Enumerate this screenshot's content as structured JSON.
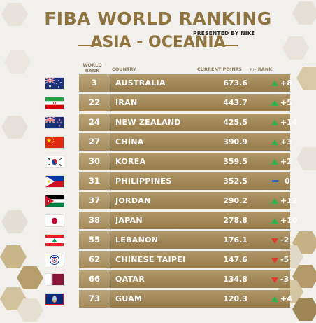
{
  "header": {
    "title": "FIBA WORLD RANKING",
    "presented_by": "PRESENTED BY NIKE",
    "region": "ASIA - OCEANIA"
  },
  "columns": {
    "world_rank": "WORLD RANK",
    "country": "COUNTRY",
    "current_points": "CURRENT POINTS",
    "change": "+/- RANK"
  },
  "colors": {
    "gold": "#8f7440",
    "up": "#2fb248",
    "down": "#e03a2c",
    "same": "#2a68c4"
  },
  "rows": [
    {
      "flag": "australia-flag",
      "rank": "3",
      "country": "AUSTRALIA",
      "points": "673.6",
      "trend": "up",
      "change": "+8"
    },
    {
      "flag": "iran-flag",
      "rank": "22",
      "country": "IRAN",
      "points": "443.7",
      "trend": "up",
      "change": "+5"
    },
    {
      "flag": "new-zealand-flag",
      "rank": "24",
      "country": "NEW ZEALAND",
      "points": "425.5",
      "trend": "up",
      "change": "+14"
    },
    {
      "flag": "china-flag",
      "rank": "27",
      "country": "CHINA",
      "points": "390.9",
      "trend": "up",
      "change": "+3"
    },
    {
      "flag": "korea-flag",
      "rank": "30",
      "country": "KOREA",
      "points": "359.5",
      "trend": "up",
      "change": "+2"
    },
    {
      "flag": "philippines-flag",
      "rank": "31",
      "country": "PHILIPPINES",
      "points": "352.5",
      "trend": "same",
      "change": "0"
    },
    {
      "flag": "jordan-flag",
      "rank": "37",
      "country": "JORDAN",
      "points": "290.2",
      "trend": "up",
      "change": "+12"
    },
    {
      "flag": "japan-flag",
      "rank": "38",
      "country": "JAPAN",
      "points": "278.8",
      "trend": "up",
      "change": "+10"
    },
    {
      "flag": "lebanon-flag",
      "rank": "55",
      "country": "LEBANON",
      "points": "176.1",
      "trend": "down",
      "change": "-2"
    },
    {
      "flag": "chinese-taipei-flag",
      "rank": "62",
      "country": "CHINESE TAIPEI",
      "points": "147.6",
      "trend": "down",
      "change": "-5"
    },
    {
      "flag": "qatar-flag",
      "rank": "66",
      "country": "QATAR",
      "points": "134.8",
      "trend": "down",
      "change": "-3"
    },
    {
      "flag": "guam-flag",
      "rank": "73",
      "country": "GUAM",
      "points": "120.3",
      "trend": "up",
      "change": "+4"
    }
  ]
}
